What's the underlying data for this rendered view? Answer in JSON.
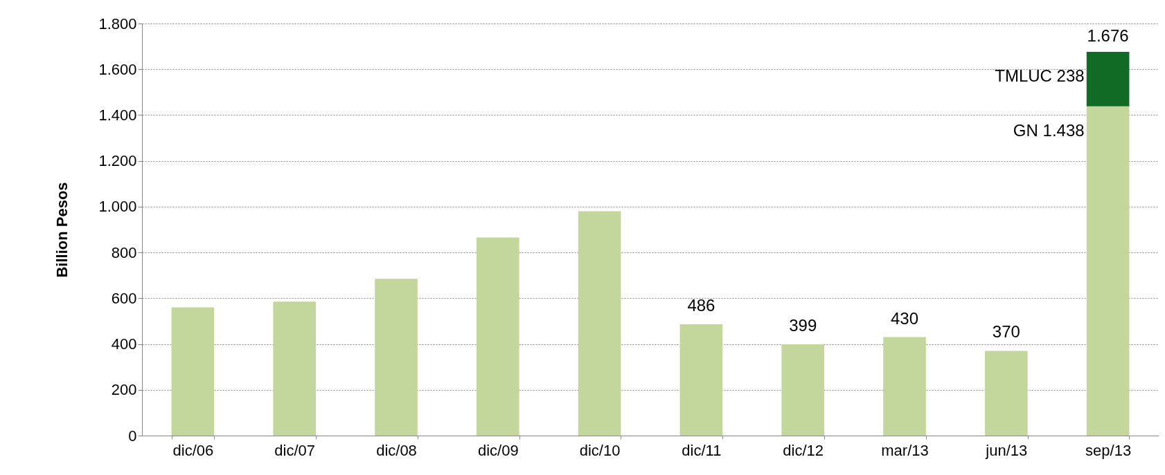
{
  "chart_data": {
    "type": "bar",
    "ylabel": "Billion Pesos",
    "stacked": true,
    "categories": [
      "dic/06",
      "dic/07",
      "dic/08",
      "dic/09",
      "dic/10",
      "dic/11",
      "dic/12",
      "mar/13",
      "jun/13",
      "sep/13"
    ],
    "series": [
      {
        "name": "GN",
        "color": "#c3d69b",
        "values": [
          560,
          585,
          685,
          865,
          980,
          486,
          399,
          430,
          370,
          1438
        ],
        "value_labels": [
          null,
          null,
          null,
          null,
          null,
          "486",
          "399",
          "430",
          "370",
          "1.438"
        ]
      },
      {
        "name": "TMLUC",
        "color": "#116b25",
        "values": [
          null,
          null,
          null,
          null,
          null,
          null,
          null,
          null,
          null,
          238
        ],
        "value_labels": [
          null,
          null,
          null,
          null,
          null,
          null,
          null,
          null,
          null,
          "238"
        ]
      }
    ],
    "totals": [
      null,
      null,
      null,
      null,
      null,
      null,
      null,
      null,
      null,
      "1.676"
    ],
    "ylim": [
      0,
      1800
    ],
    "yticks": [
      0,
      200,
      400,
      600,
      800,
      {
        "value": 1000,
        "label": "1.000"
      },
      {
        "value": 1200,
        "label": "1.200"
      },
      {
        "value": 1400,
        "label": "1.400"
      },
      {
        "value": 1600,
        "label": "1.600"
      },
      {
        "value": 1800,
        "label": "1.800"
      }
    ],
    "grid": "y",
    "legend": false
  }
}
